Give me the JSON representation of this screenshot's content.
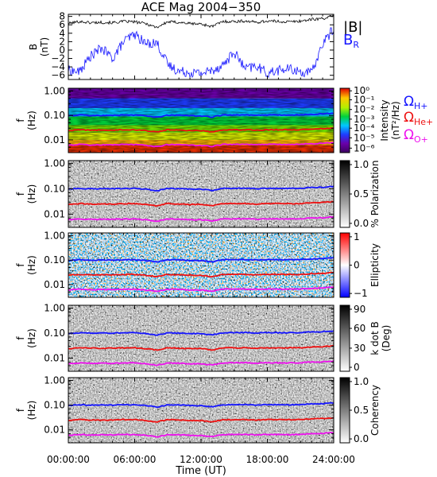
{
  "title": "ACE Mag 2004−350",
  "xlabel": "Time (UT)",
  "x_ticks": [
    "00:00:00",
    "06:00:00",
    "12:00:00",
    "18:00:00",
    "24:00:00"
  ],
  "colors": {
    "H": "#1515ff",
    "He": "#ee1010",
    "O": "#ee10ee",
    "B_total": "#000000",
    "B_R": "#1515ff"
  },
  "chart_data": [
    {
      "type": "line",
      "title": "ACE Mag 2004−350",
      "ylabel": "B (nT)",
      "ylabel_main": "B",
      "ylabel_unit": "(nT)",
      "y_ticks": [
        "8",
        "6",
        "4",
        "2",
        "0",
        "−2",
        "−4",
        "−6"
      ],
      "ylim": [
        -7,
        8.5
      ],
      "x_range_hours": [
        0,
        24
      ],
      "series": [
        {
          "name": "|B|",
          "x": [
            0,
            1,
            2,
            3,
            4,
            5,
            6,
            7,
            8,
            9,
            10,
            11,
            12,
            13,
            14,
            15,
            16,
            17,
            18,
            19,
            20,
            21,
            22,
            23,
            24
          ],
          "values": [
            6.3,
            6.8,
            6.5,
            6.6,
            6.5,
            6.8,
            6.7,
            6.3,
            5.4,
            6.7,
            6.6,
            6.3,
            6.2,
            5.6,
            6.8,
            6.8,
            6.9,
            6.6,
            6.9,
            6.8,
            6.7,
            6.9,
            7.3,
            7.5,
            8.1
          ]
        },
        {
          "name": "B_R",
          "x": [
            0,
            1,
            2,
            3,
            4,
            5,
            6,
            7,
            8,
            9,
            10,
            11,
            12,
            13,
            14,
            15,
            16,
            17,
            18,
            19,
            20,
            21,
            22,
            23,
            24
          ],
          "values": [
            -4.8,
            -5.2,
            -1.5,
            0.5,
            -2,
            2,
            3.8,
            1.5,
            1.8,
            -3.5,
            -5,
            -5.3,
            -5.5,
            -4.8,
            -3.5,
            -0.5,
            -4.5,
            -3.8,
            -5.5,
            -4.8,
            -4.5,
            -5.2,
            -5.5,
            1.5,
            5.2
          ]
        }
      ],
      "legend": [
        "|B|",
        "B_R"
      ],
      "legend_main": [
        "|B|",
        "B"
      ],
      "legend_sub": [
        "",
        "R"
      ]
    },
    {
      "type": "heatmap",
      "ylabel": "f (Hz)",
      "colorbar_label": "Intensity (nT²/Hz)",
      "colorbar_label_main": "Intensity",
      "colorbar_unit": "(nT²/Hz)",
      "colorbar_ticks": [
        "10⁰",
        "10⁻¹",
        "10⁻²",
        "10⁻³",
        "10⁻⁴",
        "10⁻⁵",
        "10⁻⁶"
      ],
      "colorbar_scale": "rainbow",
      "y_ticks": [
        "1.00",
        "0.10",
        "0.01"
      ],
      "y_scale": "log",
      "ylim": [
        0.003,
        1.3
      ],
      "legend": [
        "ΩH+",
        "ΩHe+",
        "ΩO+"
      ]
    },
    {
      "type": "heatmap",
      "ylabel": "f (Hz)",
      "colorbar_label": "% Polarization",
      "colorbar_ticks": [
        "1.0",
        "0.5",
        "0.0"
      ],
      "colorbar_scale": "grayscale",
      "y_ticks": [
        "1.00",
        "0.10",
        "0.01"
      ],
      "y_scale": "log"
    },
    {
      "type": "heatmap",
      "ylabel": "f (Hz)",
      "colorbar_label": "Ellipticity",
      "colorbar_ticks": [
        "1",
        "0",
        "−1"
      ],
      "colorbar_scale": "blue-white-red",
      "y_ticks": [
        "1.00",
        "0.10",
        "0.01"
      ],
      "y_scale": "log"
    },
    {
      "type": "heatmap",
      "ylabel": "f (Hz)",
      "colorbar_label": "k dot B (Deg)",
      "colorbar_label_main": "k dot B",
      "colorbar_unit": "(Deg)",
      "colorbar_ticks": [
        "90",
        "60",
        "30",
        "0"
      ],
      "colorbar_scale": "grayscale",
      "y_ticks": [
        "1.00",
        "0.10",
        "0.01"
      ],
      "y_scale": "log"
    },
    {
      "type": "heatmap",
      "ylabel": "f (Hz)",
      "colorbar_label": "Coherency",
      "colorbar_ticks": [
        "1.0",
        "0.5",
        "0.0"
      ],
      "colorbar_scale": "grayscale",
      "y_ticks": [
        "1.00",
        "0.10",
        "0.01"
      ],
      "y_scale": "log"
    }
  ],
  "cyclotron_lines": {
    "x": [
      0,
      1,
      2,
      3,
      4,
      5,
      6,
      7,
      8,
      9,
      10,
      11,
      12,
      13,
      14,
      15,
      16,
      17,
      18,
      19,
      20,
      21,
      22,
      23,
      24
    ],
    "H_plus_hz": [
      0.097,
      0.104,
      0.1,
      0.101,
      0.1,
      0.104,
      0.103,
      0.097,
      0.083,
      0.103,
      0.101,
      0.097,
      0.095,
      0.086,
      0.104,
      0.104,
      0.106,
      0.101,
      0.106,
      0.104,
      0.103,
      0.106,
      0.112,
      0.115,
      0.124
    ],
    "He_plus_hz": [
      0.024,
      0.026,
      0.025,
      0.025,
      0.025,
      0.026,
      0.026,
      0.024,
      0.021,
      0.026,
      0.025,
      0.024,
      0.024,
      0.021,
      0.026,
      0.026,
      0.026,
      0.025,
      0.026,
      0.026,
      0.026,
      0.026,
      0.028,
      0.029,
      0.031
    ],
    "O_plus_hz": [
      0.006,
      0.0065,
      0.0062,
      0.0063,
      0.0062,
      0.0065,
      0.0064,
      0.006,
      0.0052,
      0.0064,
      0.0063,
      0.006,
      0.0059,
      0.0054,
      0.0065,
      0.0065,
      0.0066,
      0.0063,
      0.0066,
      0.0065,
      0.0064,
      0.0066,
      0.007,
      0.0072,
      0.0078
    ]
  }
}
